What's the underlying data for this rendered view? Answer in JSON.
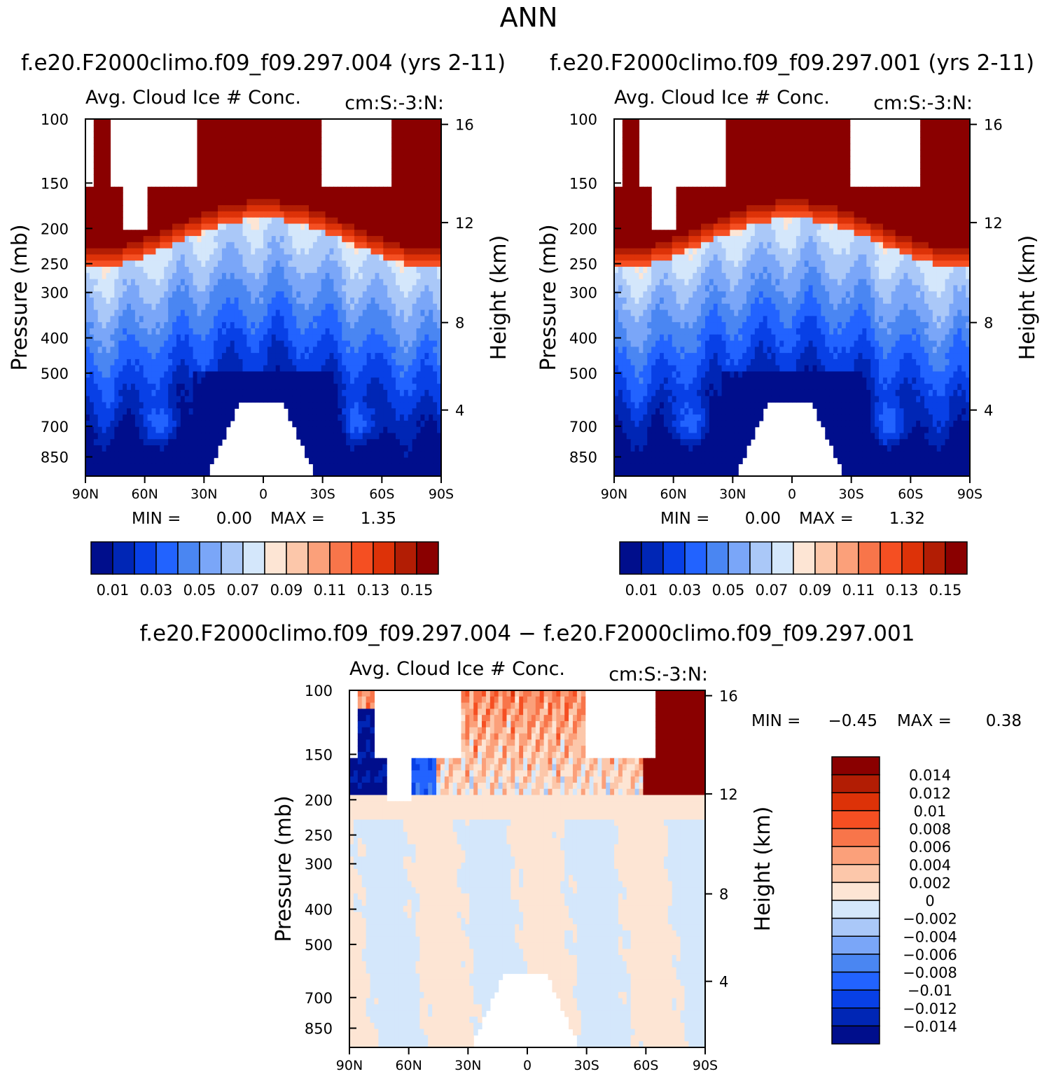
{
  "page_title": "ANN",
  "colors": {
    "abs_levels": [
      "#000e8c",
      "#0026b5",
      "#0840e6",
      "#2263ff",
      "#4a86f2",
      "#7aa6f8",
      "#aac8f8",
      "#d4e7fb",
      "#fde5d4",
      "#fcc7aa",
      "#fba07a",
      "#f8754a",
      "#f54f22",
      "#dd3208",
      "#b21d04",
      "#8a0000"
    ],
    "diff_levels": [
      "#000e8c",
      "#0026b5",
      "#0840e6",
      "#2263ff",
      "#4a86f2",
      "#7aa6f8",
      "#aac8f8",
      "#d4e7fb",
      "#fde5d4",
      "#fcc7aa",
      "#fba07a",
      "#f8754a",
      "#f54f22",
      "#dd3208",
      "#b21d04",
      "#8a0000"
    ]
  },
  "chart_data": [
    {
      "type": "heatmap",
      "id": "case1",
      "title": "f.e20.F2000climo.f09_f09.297.004 (yrs 2-11)",
      "left_title": "Avg. Cloud Ice # Conc.",
      "right_title": "cm:S:-3:N:",
      "ylabel": "Pressure (mb)",
      "y2label": "Height (km)",
      "xticks": [
        "90N",
        "60N",
        "30N",
        "0",
        "30S",
        "60S",
        "90S"
      ],
      "yticks": [
        "100",
        "150",
        "200",
        "250",
        "300",
        "400",
        "500",
        "700",
        "850"
      ],
      "y2ticks": [
        "16",
        "12",
        "8",
        "4"
      ],
      "min_label": "MIN =",
      "min_value": "0.00",
      "max_label": "MAX =",
      "max_value": "1.35",
      "colorbar_labels": [
        "0.01",
        "0.03",
        "0.05",
        "0.07",
        "0.09",
        "0.11",
        "0.13",
        "0.15"
      ]
    },
    {
      "type": "heatmap",
      "id": "case2",
      "title": "f.e20.F2000climo.f09_f09.297.001 (yrs 2-11)",
      "left_title": "Avg. Cloud Ice # Conc.",
      "right_title": "cm:S:-3:N:",
      "ylabel": "Pressure (mb)",
      "y2label": "Height (km)",
      "xticks": [
        "90N",
        "60N",
        "30N",
        "0",
        "30S",
        "60S",
        "90S"
      ],
      "yticks": [
        "100",
        "150",
        "200",
        "250",
        "300",
        "400",
        "500",
        "700",
        "850"
      ],
      "y2ticks": [
        "16",
        "12",
        "8",
        "4"
      ],
      "min_label": "MIN =",
      "min_value": "0.00",
      "max_label": "MAX =",
      "max_value": "1.32",
      "colorbar_labels": [
        "0.01",
        "0.03",
        "0.05",
        "0.07",
        "0.09",
        "0.11",
        "0.13",
        "0.15"
      ]
    },
    {
      "type": "heatmap",
      "id": "diff",
      "title": "f.e20.F2000climo.f09_f09.297.004 − f.e20.F2000climo.f09_f09.297.001",
      "left_title": "Avg. Cloud Ice # Conc.",
      "right_title": "cm:S:-3:N:",
      "ylabel": "Pressure (mb)",
      "y2label": "Height (km)",
      "xticks": [
        "90N",
        "60N",
        "30N",
        "0",
        "30S",
        "60S",
        "90S"
      ],
      "yticks": [
        "100",
        "150",
        "200",
        "250",
        "300",
        "400",
        "500",
        "700",
        "850"
      ],
      "y2ticks": [
        "16",
        "12",
        "8",
        "4"
      ],
      "min_label": "MIN =",
      "min_value": "−0.45",
      "max_label": "MAX =",
      "max_value": "0.38",
      "colorbar_labels": [
        "0.014",
        "0.012",
        "0.01",
        "0.008",
        "0.006",
        "0.004",
        "0.002",
        "0",
        "−0.002",
        "−0.004",
        "−0.006",
        "−0.008",
        "−0.01",
        "−0.012",
        "−0.014"
      ]
    }
  ]
}
